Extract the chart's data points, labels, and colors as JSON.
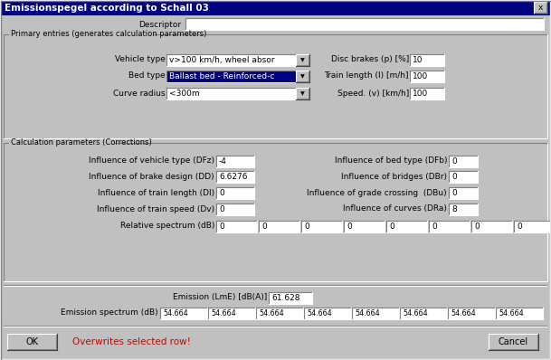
{
  "title": "Emissionspegel according to Schall 03",
  "bg_color": "#c0c0c0",
  "title_bar_color": "#000080",
  "title_text_color": "#ffffff",
  "white": "#ffffff",
  "selected_blue": "#000080",
  "selected_text": "#ffffff",
  "red_text": "#cc0000",
  "descriptor_label": "Descriptor",
  "group1_title": "Primary entries (generates calculation parameters)",
  "group2_title": "Calculation parameters (Corrections)",
  "vehicle_type_label": "Vehicle type",
  "vehicle_type_value": "v>100 km/h, wheel absor",
  "bed_type_label": "Bed type",
  "bed_type_value": "Ballast bed - Reinforced-c",
  "curve_radius_label": "Curve radius",
  "curve_radius_value": "<300m",
  "disc_brakes_label": "Disc brakes (p) [%]",
  "disc_brakes_value": "10",
  "train_length_label": "Train length (l) [m/h]",
  "train_length_value": "100",
  "speed_label": "Speed. (v) [km/h]",
  "speed_value": "100",
  "dfz_label": "Influence of vehicle type (DFz)",
  "dfz_value": "-4",
  "dd_label": "Influence of brake design (DD)",
  "dd_value": "6.6276",
  "dl_label": "Influence of train length (Dl)",
  "dl_value": "0",
  "dv_label": "Influence of train speed (Dv)",
  "dv_value": "0",
  "dfb_label": "Influence of bed type (DFb)",
  "dfb_value": "0",
  "dbr_label": "Influence of bridges (DBr)",
  "dbr_value": "0",
  "dbu_label": "Influence of grade crossing  (DBu)",
  "dbu_value": "0",
  "dra_label": "Influence of curves (DRa)",
  "dra_value": "8",
  "rel_spectrum_label": "Relative spectrum (dB)",
  "rel_spectrum_values": [
    "0",
    "0",
    "0",
    "0",
    "0",
    "0",
    "0",
    "0"
  ],
  "emission_label": "Emission (LmE) [dB(A)]",
  "emission_value": "61.628",
  "emission_spectrum_label": "Emission spectrum (dB)",
  "emission_spectrum_values": [
    "54.664",
    "54.664",
    "54.664",
    "54.664",
    "54.664",
    "54.664",
    "54.664",
    "54.664"
  ],
  "ok_label": "OK",
  "cancel_label": "Cancel",
  "overwrite_label": "Overwrites selected row!",
  "close_x": "x",
  "font_size_title": 7.5,
  "font_size_label": 6.5,
  "font_size_input": 6.5,
  "font_size_group": 6.5
}
